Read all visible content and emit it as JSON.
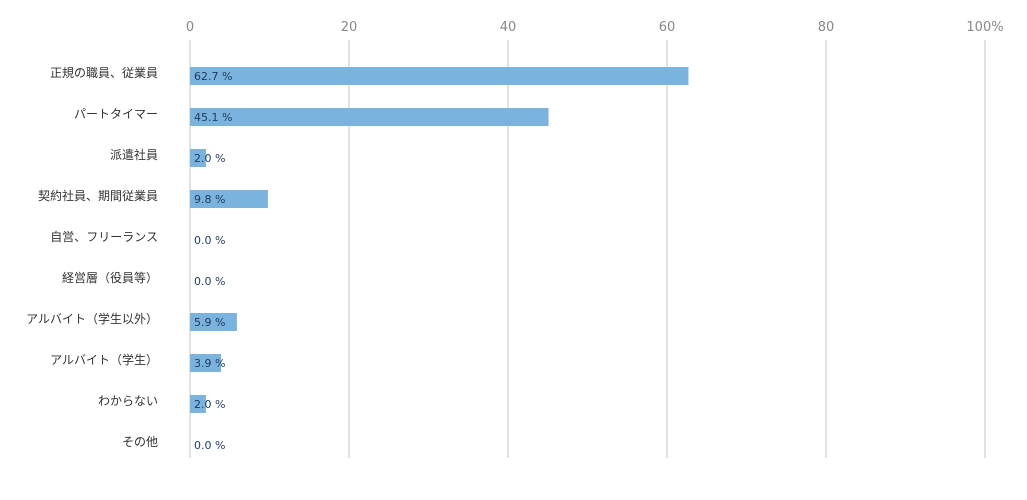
{
  "chart_data": {
    "type": "bar",
    "orientation": "horizontal",
    "title": "",
    "xlabel": "",
    "ylabel": "",
    "xlim": [
      0,
      100
    ],
    "x_ticks": [
      0,
      20,
      40,
      60,
      80,
      100
    ],
    "x_tick_labels": [
      "0",
      "20",
      "40",
      "60",
      "80",
      "100%"
    ],
    "x_axis_position": "top",
    "grid": true,
    "legend": "none",
    "bar_color": "#7ab3dd",
    "label_color": "#1f3a5f",
    "categories": [
      "正規の職員、従業員",
      "パートタイマー",
      "派遣社員",
      "契約社員、期間従業員",
      "自営、フリーランス",
      "経営層（役員等）",
      "アルバイト（学生以外）",
      "アルバイト（学生）",
      "わからない",
      "その他"
    ],
    "values": [
      62.7,
      45.1,
      2.0,
      9.8,
      0.0,
      0.0,
      5.9,
      3.9,
      2.0,
      0.0
    ],
    "data_labels": [
      "62.7 %",
      "45.1 %",
      "2.0 %",
      "9.8 %",
      "0.0 %",
      "0.0 %",
      "5.9 %",
      "3.9 %",
      "2.0 %",
      "0.0 %"
    ]
  }
}
